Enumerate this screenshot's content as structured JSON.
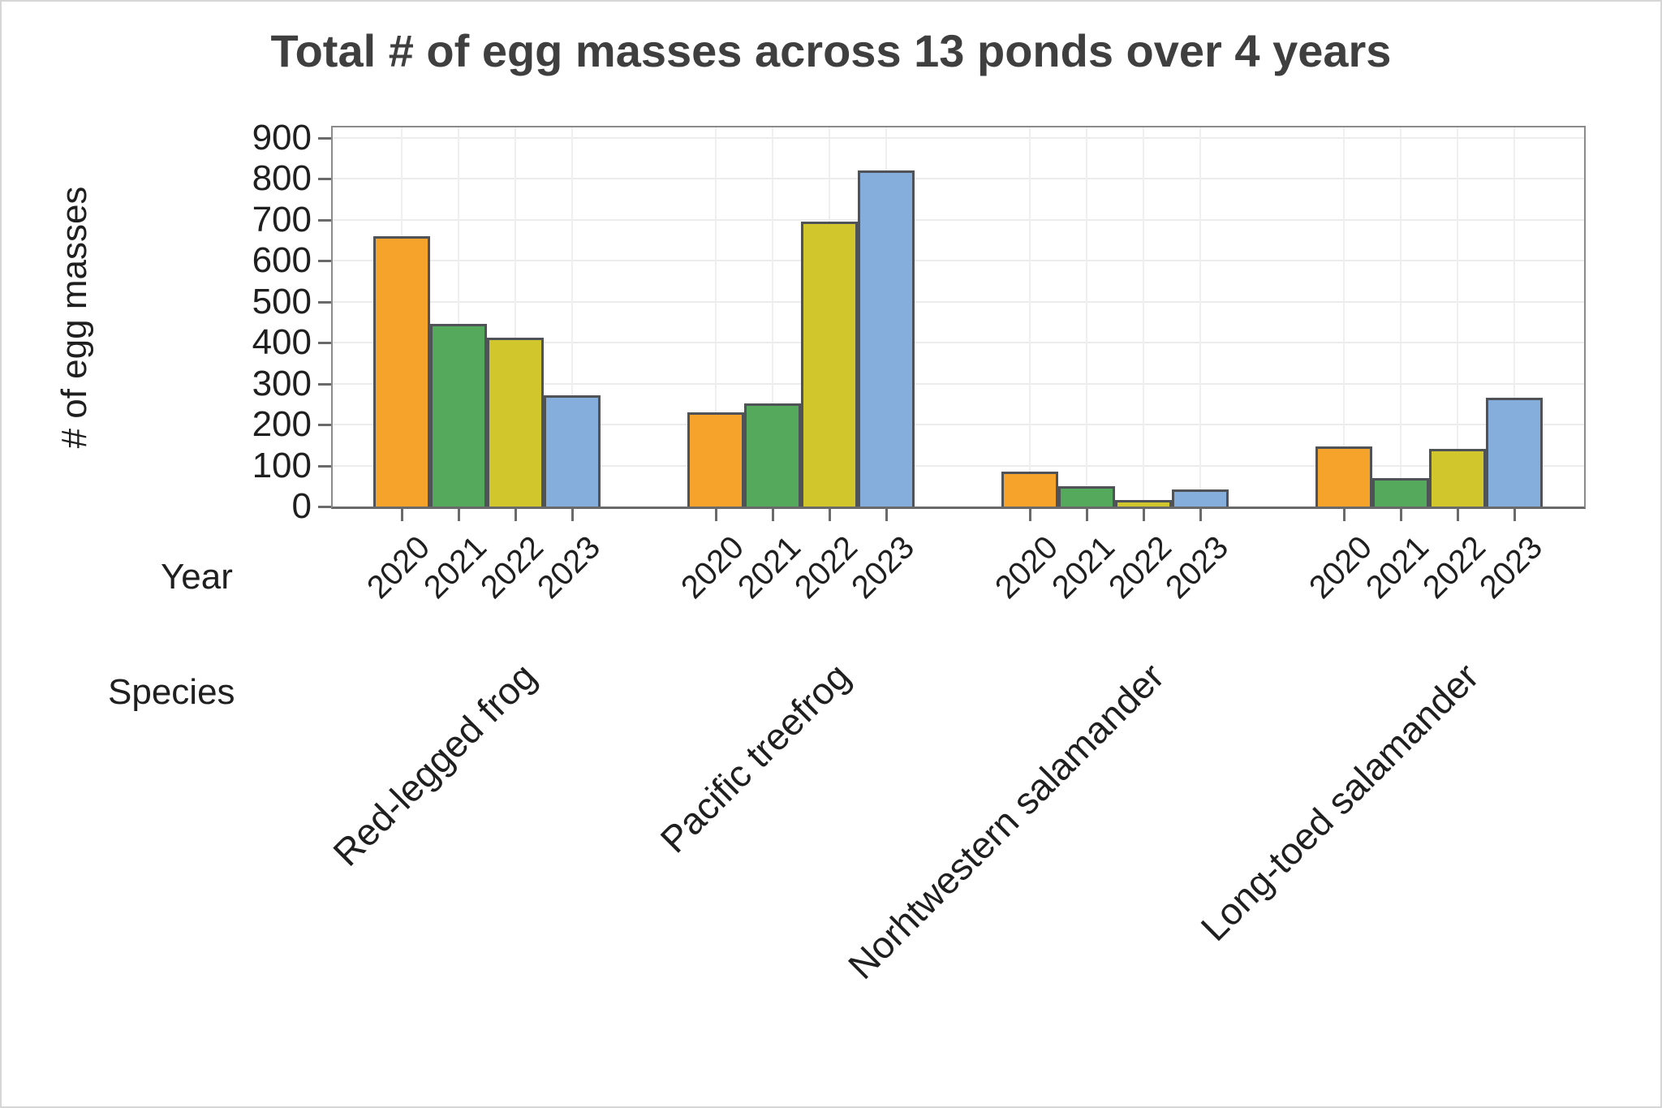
{
  "title": "Total # of egg masses across 13 ponds over 4 years",
  "y_axis": {
    "label": "# of egg masses",
    "tick_labels": [
      "0",
      "100",
      "200",
      "300",
      "400",
      "500",
      "600",
      "700",
      "800",
      "900"
    ]
  },
  "x_axis": {
    "row1_label": "Year",
    "row2_label": "Species"
  },
  "chart_data": {
    "type": "bar",
    "title": "Total # of egg masses across 13 ponds over 4 years",
    "ylabel": "# of egg masses",
    "xlabel_rows": [
      "Year",
      "Species"
    ],
    "ylim": [
      0,
      900
    ],
    "ytick_step": 100,
    "grid": true,
    "legend": "none",
    "years": [
      "2020",
      "2021",
      "2022",
      "2023"
    ],
    "year_colors": [
      "#F5A32B",
      "#55A95C",
      "#D1C62B",
      "#85AEDC"
    ],
    "categories": [
      "Red-legged frog",
      "Pacific treefrog",
      "Norhtwestern salamander",
      "Long-toed salamander"
    ],
    "series": [
      {
        "species": "Red-legged frog",
        "values": [
          660,
          445,
          413,
          272
        ]
      },
      {
        "species": "Pacific treefrog",
        "values": [
          230,
          252,
          695,
          820
        ]
      },
      {
        "species": "Norhtwestern salamander",
        "values": [
          85,
          50,
          15,
          42
        ]
      },
      {
        "species": "Long-toed salamander",
        "values": [
          147,
          70,
          140,
          265
        ]
      }
    ]
  },
  "colors": {
    "bar_border": "#4F5257",
    "plot_border": "#8B8B8B",
    "axis_line": "#6A6A6A",
    "gridline": "#ECECEC",
    "title_text": "#3F3F3F",
    "label_text": "#1F1F1F",
    "page_border": "#D6D6D6"
  }
}
